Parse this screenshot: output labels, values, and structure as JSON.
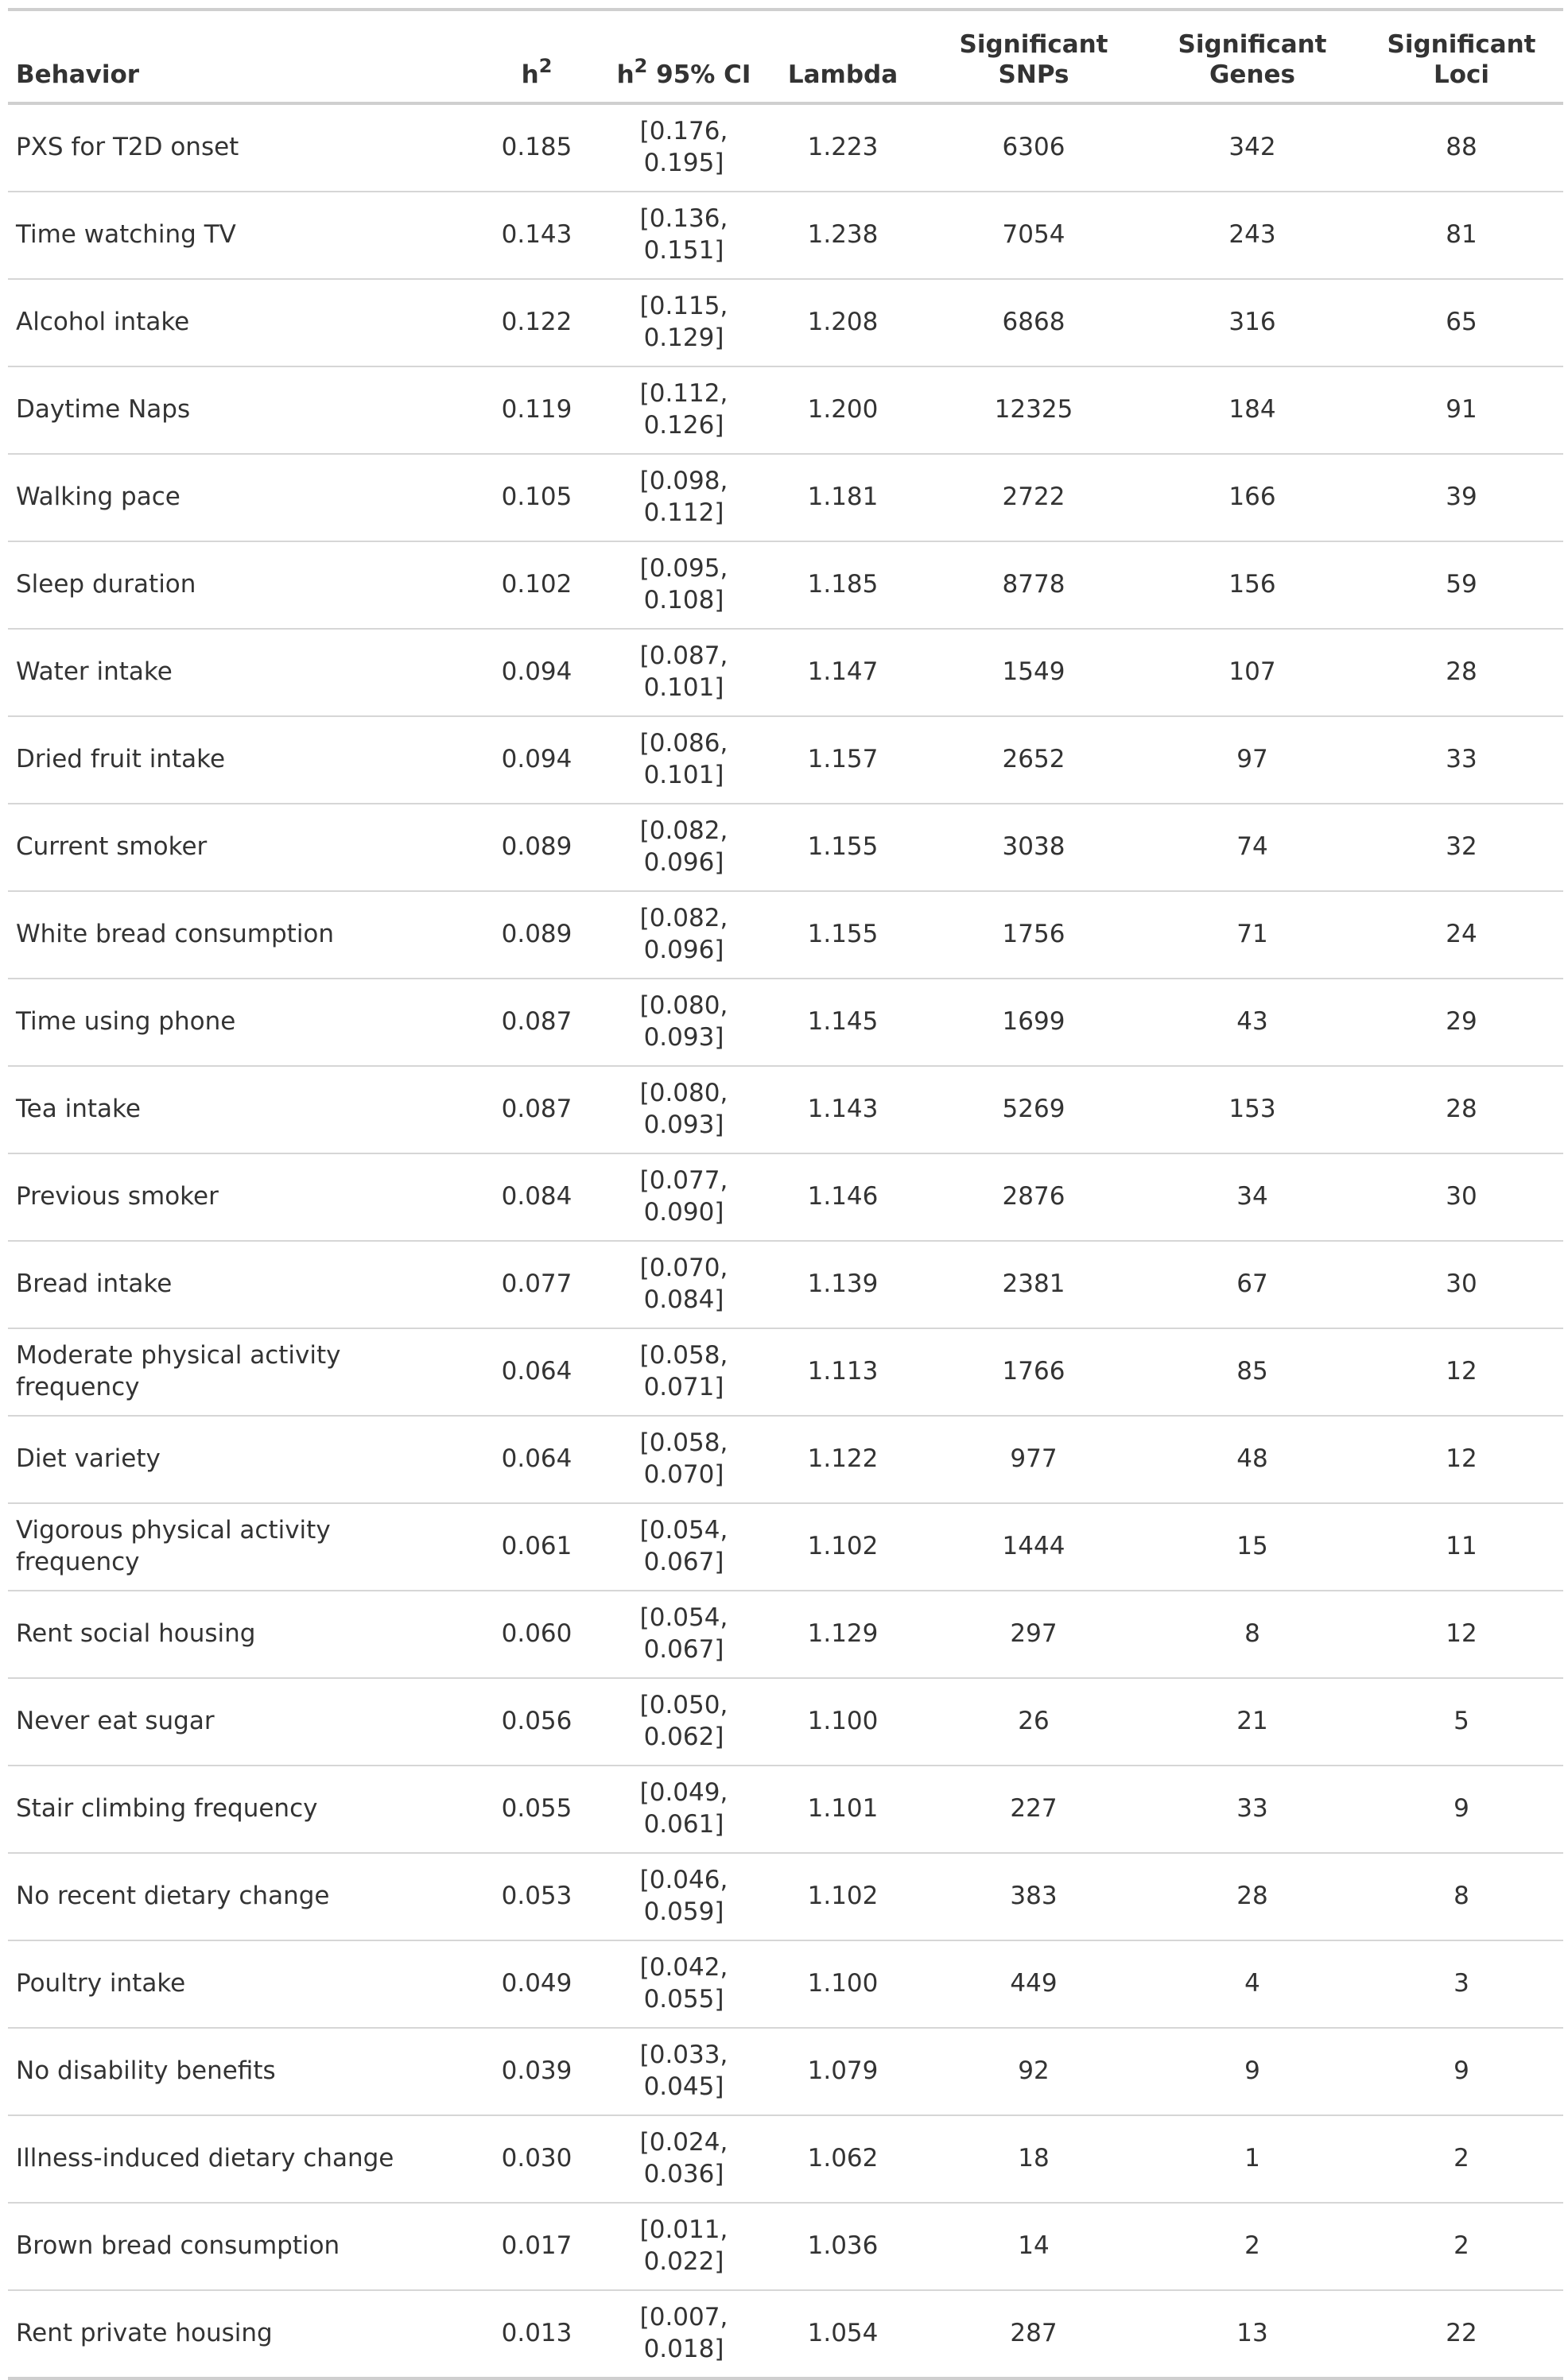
{
  "table": {
    "headers": {
      "behavior": "Behavior",
      "h2_base": "h",
      "h2_sup": "2",
      "ci_base": "h",
      "ci_sup": "2",
      "ci_rest": " 95% CI",
      "lambda": "Lambda",
      "snps_line1": "Significant",
      "snps_line2": "SNPs",
      "genes_line1": "Significant",
      "genes_line2": "Genes",
      "loci_line1": "Significant",
      "loci_line2": "Loci"
    },
    "rows": [
      {
        "behavior": "PXS for T2D onset",
        "h2": "0.185",
        "ci_lo": "[0.176,",
        "ci_hi": "0.195]",
        "lambda": "1.223",
        "snps": "6306",
        "genes": "342",
        "loci": "88"
      },
      {
        "behavior": "Time watching TV",
        "h2": "0.143",
        "ci_lo": "[0.136,",
        "ci_hi": "0.151]",
        "lambda": "1.238",
        "snps": "7054",
        "genes": "243",
        "loci": "81"
      },
      {
        "behavior": "Alcohol intake",
        "h2": "0.122",
        "ci_lo": "[0.115,",
        "ci_hi": "0.129]",
        "lambda": "1.208",
        "snps": "6868",
        "genes": "316",
        "loci": "65"
      },
      {
        "behavior": "Daytime Naps",
        "h2": "0.119",
        "ci_lo": "[0.112,",
        "ci_hi": "0.126]",
        "lambda": "1.200",
        "snps": "12325",
        "genes": "184",
        "loci": "91"
      },
      {
        "behavior": "Walking pace",
        "h2": "0.105",
        "ci_lo": "[0.098,",
        "ci_hi": "0.112]",
        "lambda": "1.181",
        "snps": "2722",
        "genes": "166",
        "loci": "39"
      },
      {
        "behavior": "Sleep duration",
        "h2": "0.102",
        "ci_lo": "[0.095,",
        "ci_hi": "0.108]",
        "lambda": "1.185",
        "snps": "8778",
        "genes": "156",
        "loci": "59"
      },
      {
        "behavior": "Water intake",
        "h2": "0.094",
        "ci_lo": "[0.087,",
        "ci_hi": "0.101]",
        "lambda": "1.147",
        "snps": "1549",
        "genes": "107",
        "loci": "28"
      },
      {
        "behavior": "Dried fruit intake",
        "h2": "0.094",
        "ci_lo": "[0.086,",
        "ci_hi": "0.101]",
        "lambda": "1.157",
        "snps": "2652",
        "genes": "97",
        "loci": "33"
      },
      {
        "behavior": "Current smoker",
        "h2": "0.089",
        "ci_lo": "[0.082,",
        "ci_hi": "0.096]",
        "lambda": "1.155",
        "snps": "3038",
        "genes": "74",
        "loci": "32"
      },
      {
        "behavior": "White bread consumption",
        "h2": "0.089",
        "ci_lo": "[0.082,",
        "ci_hi": "0.096]",
        "lambda": "1.155",
        "snps": "1756",
        "genes": "71",
        "loci": "24"
      },
      {
        "behavior": "Time using phone",
        "h2": "0.087",
        "ci_lo": "[0.080,",
        "ci_hi": "0.093]",
        "lambda": "1.145",
        "snps": "1699",
        "genes": "43",
        "loci": "29"
      },
      {
        "behavior": "Tea intake",
        "h2": "0.087",
        "ci_lo": "[0.080,",
        "ci_hi": "0.093]",
        "lambda": "1.143",
        "snps": "5269",
        "genes": "153",
        "loci": "28"
      },
      {
        "behavior": "Previous smoker",
        "h2": "0.084",
        "ci_lo": "[0.077,",
        "ci_hi": "0.090]",
        "lambda": "1.146",
        "snps": "2876",
        "genes": "34",
        "loci": "30"
      },
      {
        "behavior": "Bread intake",
        "h2": "0.077",
        "ci_lo": "[0.070,",
        "ci_hi": "0.084]",
        "lambda": "1.139",
        "snps": "2381",
        "genes": "67",
        "loci": "30"
      },
      {
        "behavior": "Moderate physical activity frequency",
        "h2": "0.064",
        "ci_lo": "[0.058,",
        "ci_hi": "0.071]",
        "lambda": "1.113",
        "snps": "1766",
        "genes": "85",
        "loci": "12"
      },
      {
        "behavior": "Diet variety",
        "h2": "0.064",
        "ci_lo": "[0.058,",
        "ci_hi": "0.070]",
        "lambda": "1.122",
        "snps": "977",
        "genes": "48",
        "loci": "12"
      },
      {
        "behavior": "Vigorous physical activity frequency",
        "h2": "0.061",
        "ci_lo": "[0.054,",
        "ci_hi": "0.067]",
        "lambda": "1.102",
        "snps": "1444",
        "genes": "15",
        "loci": "11"
      },
      {
        "behavior": "Rent social housing",
        "h2": "0.060",
        "ci_lo": "[0.054,",
        "ci_hi": "0.067]",
        "lambda": "1.129",
        "snps": "297",
        "genes": "8",
        "loci": "12"
      },
      {
        "behavior": "Never eat sugar",
        "h2": "0.056",
        "ci_lo": "[0.050,",
        "ci_hi": "0.062]",
        "lambda": "1.100",
        "snps": "26",
        "genes": "21",
        "loci": "5"
      },
      {
        "behavior": "Stair climbing frequency",
        "h2": "0.055",
        "ci_lo": "[0.049,",
        "ci_hi": "0.061]",
        "lambda": "1.101",
        "snps": "227",
        "genes": "33",
        "loci": "9"
      },
      {
        "behavior": "No recent dietary change",
        "h2": "0.053",
        "ci_lo": "[0.046,",
        "ci_hi": "0.059]",
        "lambda": "1.102",
        "snps": "383",
        "genes": "28",
        "loci": "8"
      },
      {
        "behavior": "Poultry intake",
        "h2": "0.049",
        "ci_lo": "[0.042,",
        "ci_hi": "0.055]",
        "lambda": "1.100",
        "snps": "449",
        "genes": "4",
        "loci": "3"
      },
      {
        "behavior": "No disability benefits",
        "h2": "0.039",
        "ci_lo": "[0.033,",
        "ci_hi": "0.045]",
        "lambda": "1.079",
        "snps": "92",
        "genes": "9",
        "loci": "9"
      },
      {
        "behavior": "Illness-induced dietary change",
        "h2": "0.030",
        "ci_lo": "[0.024,",
        "ci_hi": "0.036]",
        "lambda": "1.062",
        "snps": "18",
        "genes": "1",
        "loci": "2"
      },
      {
        "behavior": "Brown bread consumption",
        "h2": "0.017",
        "ci_lo": "[0.011,",
        "ci_hi": "0.022]",
        "lambda": "1.036",
        "snps": "14",
        "genes": "2",
        "loci": "2"
      },
      {
        "behavior": "Rent private housing",
        "h2": "0.013",
        "ci_lo": "[0.007,",
        "ci_hi": "0.018]",
        "lambda": "1.054",
        "snps": "287",
        "genes": "13",
        "loci": "22"
      }
    ]
  }
}
